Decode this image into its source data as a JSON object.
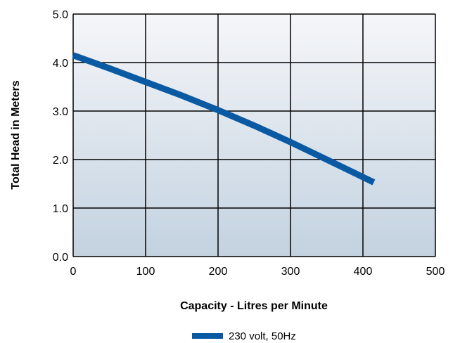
{
  "chart_data": {
    "type": "line",
    "title": "",
    "xlabel": "Capacity - Litres per Minute",
    "ylabel": "Total Head in Meters",
    "xlim": [
      0,
      500
    ],
    "ylim": [
      0,
      5
    ],
    "x_ticks": [
      0,
      100,
      200,
      300,
      400,
      500
    ],
    "x_tick_labels": [
      "0",
      "100",
      "200",
      "300",
      "400",
      "500"
    ],
    "y_ticks": [
      0,
      1,
      2,
      3,
      4,
      5
    ],
    "y_tick_labels": [
      "0.0",
      "1.0",
      "2.0",
      "3.0",
      "4.0",
      "5.0"
    ],
    "grid": true,
    "legend_position": "bottom-center",
    "background_gradient": [
      "#f5f6f9",
      "#c3d2e0"
    ],
    "grid_color": "#000000",
    "series": [
      {
        "name": "230 volt, 50Hz",
        "color": "#0a5aa3",
        "x": [
          0,
          50,
          100,
          150,
          200,
          250,
          300,
          350,
          415
        ],
        "y": [
          4.15,
          3.88,
          3.6,
          3.32,
          3.02,
          2.7,
          2.36,
          2.0,
          1.53
        ]
      }
    ]
  }
}
